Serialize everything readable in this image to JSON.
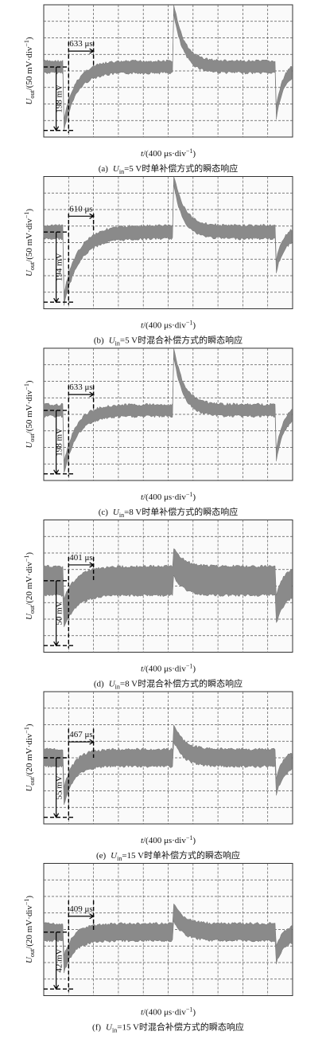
{
  "panels": [
    {
      "letter": "(a)",
      "var": "U",
      "sub": "in",
      "rest": "=5 V时单补偿方式的瞬态响应",
      "ylabel": {
        "var": "U",
        "sub": "out",
        "unit": "/(50 mV·div",
        "sup": "−1",
        "end": ")"
      },
      "xlabel": {
        "var": "t",
        "unit": "/(400 μs·div",
        "sup": "−1",
        "end": ")"
      },
      "time": "633 μs",
      "amp": "198 mV"
    },
    {
      "letter": "(b)",
      "var": "U",
      "sub": "in",
      "rest": "=5 V时混合补偿方式的瞬态响应",
      "ylabel": {
        "var": "U",
        "sub": "out",
        "unit": "/(50 mV·div",
        "sup": "−1",
        "end": ")"
      },
      "xlabel": {
        "var": "t",
        "unit": "/(400 μs·div",
        "sup": "−1",
        "end": ")"
      },
      "time": "610 μs",
      "amp": "194 mV"
    },
    {
      "letter": "(c)",
      "var": "U",
      "sub": "in",
      "rest": "=8 V时单补偿方式的瞬态响应",
      "ylabel": {
        "var": "U",
        "sub": "out",
        "unit": "/(50 mV·div",
        "sup": "−1",
        "end": ")"
      },
      "xlabel": {
        "var": "t",
        "unit": "/(400 μs·div",
        "sup": "−1",
        "end": ")"
      },
      "time": "633 μs",
      "amp": "198 mV"
    },
    {
      "letter": "(d)",
      "var": "U",
      "sub": "in",
      "rest": "=8 V时混合补偿方式的瞬态响应",
      "ylabel": {
        "var": "U",
        "sub": "out",
        "unit": "/(20 mV·div",
        "sup": "−1",
        "end": ")"
      },
      "xlabel": {
        "var": "t",
        "unit": "/(400 μs·div",
        "sup": "−1",
        "end": ")"
      },
      "time": "401 μs",
      "amp": "50 mV"
    },
    {
      "letter": "(e)",
      "var": "U",
      "sub": "in",
      "rest": "=15 V时单补偿方式的瞬态响应",
      "ylabel": {
        "var": "U",
        "sub": "out",
        "unit": "/(20 mV·div",
        "sup": "−1",
        "end": ")"
      },
      "xlabel": {
        "var": "t",
        "unit": "/(400 μs·div",
        "sup": "−1",
        "end": ")"
      },
      "time": "467 μs",
      "amp": "55 mV"
    },
    {
      "letter": "(f)",
      "var": "U",
      "sub": "in",
      "rest": "=15 V时混合补偿方式的瞬态响应",
      "ylabel": {
        "var": "U",
        "sub": "out",
        "unit": "/(20 mV·div",
        "sup": "−1",
        "end": ")"
      },
      "xlabel": {
        "var": "t",
        "unit": "/(400 μs·div",
        "sup": "−1",
        "end": ")"
      },
      "time": "409 μs",
      "amp": "42 mV"
    }
  ]
}
